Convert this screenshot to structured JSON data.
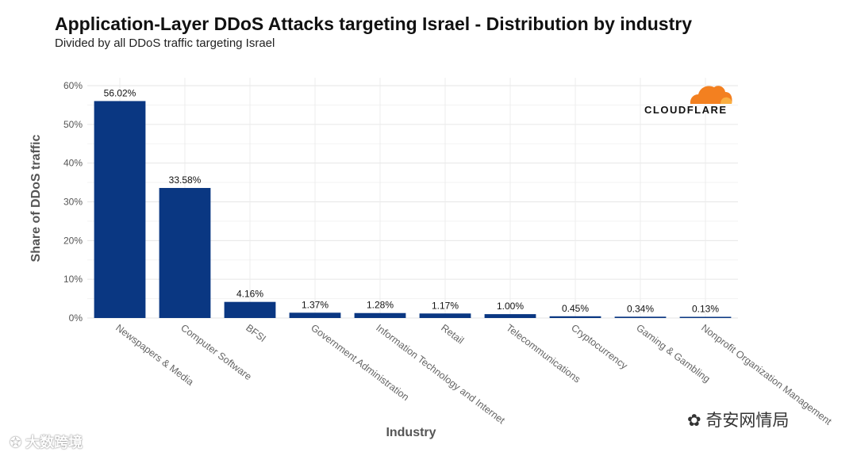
{
  "chart_data": {
    "type": "bar",
    "title": "Application-Layer DDoS Attacks targeting Israel - Distribution by industry",
    "subtitle": "Divided by all DDoS traffic targeting Israel",
    "xlabel": "Industry",
    "ylabel": "Share of DDoS traffic",
    "ylim": [
      0,
      60
    ],
    "yticks": [
      0,
      10,
      20,
      30,
      40,
      50,
      60
    ],
    "ytick_labels": [
      "0%",
      "10%",
      "20%",
      "30%",
      "40%",
      "50%",
      "60%"
    ],
    "grid": true,
    "bar_color": "#0a3782",
    "categories": [
      "Newspapers & Media",
      "Computer Software",
      "BFSI",
      "Government Administration",
      "Information Technology and Internet",
      "Retail",
      "Telecommunications",
      "Cryptocurrency",
      "Gaming & Gambling",
      "Nonprofit Organization Management"
    ],
    "values": [
      56.02,
      33.58,
      4.16,
      1.37,
      1.28,
      1.17,
      1.0,
      0.45,
      0.34,
      0.13
    ],
    "data_labels": [
      "56.02%",
      "33.58%",
      "4.16%",
      "1.37%",
      "1.28%",
      "1.17%",
      "1.00%",
      "0.45%",
      "0.34%",
      "0.13%"
    ]
  },
  "logo": {
    "text": "CLOUDFLARE",
    "color": "#f38020"
  },
  "watermarks": {
    "right": "奇安网情局",
    "left": "大数跨境"
  }
}
